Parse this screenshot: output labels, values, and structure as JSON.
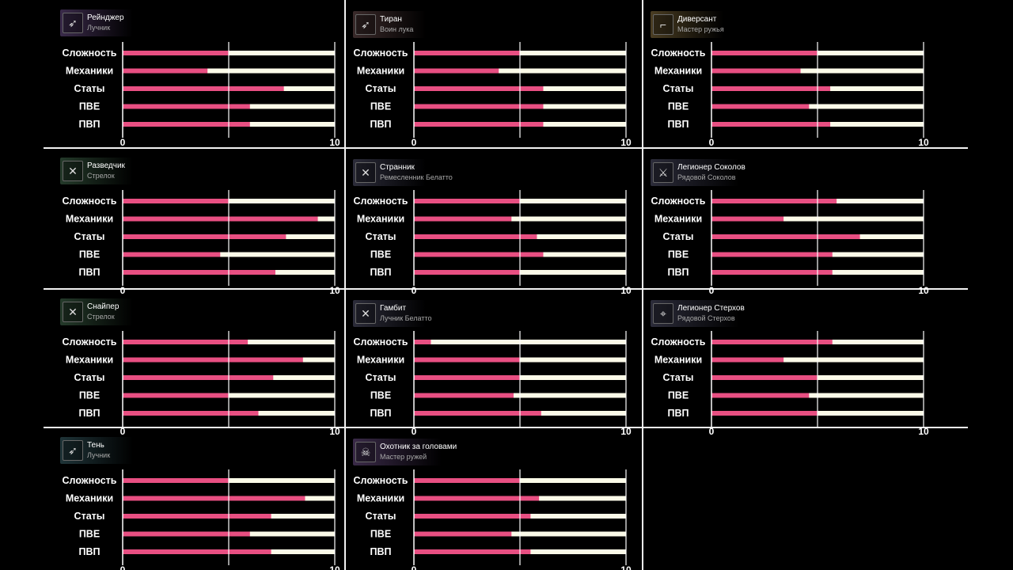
{
  "colors": {
    "background": "#000000",
    "bar_value": "#e84f82",
    "bar_track": "#fbfae8",
    "separator": "#f2f2f2",
    "text": "#ffffff"
  },
  "chart_data": [
    {
      "type": "bar",
      "orientation": "horizontal",
      "title": "Рейнджер",
      "subtitle": "Лучник",
      "icon": "bow-icon",
      "header_color": "#3a2a4a",
      "categories": [
        "Сложность",
        "Механики",
        "Статы",
        "ПВЕ",
        "ПВП"
      ],
      "values": [
        5,
        4,
        7.6,
        6,
        6
      ],
      "xlim": [
        0,
        10
      ],
      "xticks": [
        0,
        10
      ],
      "grid_x": [
        5
      ]
    },
    {
      "type": "bar",
      "orientation": "horizontal",
      "title": "Тиран",
      "subtitle": "Воин лука",
      "icon": "bow-icon",
      "header_color": "#3a2a2a",
      "categories": [
        "Сложность",
        "Механики",
        "Статы",
        "ПВЕ",
        "ПВП"
      ],
      "values": [
        5,
        4,
        6.1,
        6.1,
        6.1
      ],
      "xlim": [
        0,
        10
      ],
      "xticks": [
        0,
        10
      ],
      "grid_x": [
        5
      ]
    },
    {
      "type": "bar",
      "orientation": "horizontal",
      "title": "Диверсант",
      "subtitle": "Мастер ружья",
      "icon": "rifle-icon",
      "header_color": "#4a3d22",
      "categories": [
        "Сложность",
        "Механики",
        "Статы",
        "ПВЕ",
        "ПВП"
      ],
      "values": [
        5,
        4.2,
        5.6,
        4.6,
        5.6
      ],
      "xlim": [
        0,
        10
      ],
      "xticks": [
        0,
        10
      ],
      "grid_x": [
        5
      ]
    },
    {
      "type": "bar",
      "orientation": "horizontal",
      "title": "Разведчик",
      "subtitle": "Стрелок",
      "icon": "crossbow-icon",
      "header_color": "#243a2a",
      "categories": [
        "Сложность",
        "Механики",
        "Статы",
        "ПВЕ",
        "ПВП"
      ],
      "values": [
        5,
        9.2,
        7.7,
        4.6,
        7.2
      ],
      "xlim": [
        0,
        10
      ],
      "xticks": [
        0,
        10
      ],
      "grid_x": [
        5
      ]
    },
    {
      "type": "bar",
      "orientation": "horizontal",
      "title": "Странник",
      "subtitle": "Ремесленник Белатто",
      "icon": "crossbow-icon",
      "header_color": "#2c2c3a",
      "categories": [
        "Сложность",
        "Механики",
        "Статы",
        "ПВЕ",
        "ПВП"
      ],
      "values": [
        5,
        4.6,
        5.8,
        6.1,
        5
      ],
      "xlim": [
        0,
        10
      ],
      "xticks": [
        0,
        10
      ],
      "grid_x": [
        5
      ]
    },
    {
      "type": "bar",
      "orientation": "horizontal",
      "title": "Легионер Соколов",
      "subtitle": "Рядовой Соколов",
      "icon": "sword-icon",
      "header_color": "#2c2c3a",
      "categories": [
        "Сложность",
        "Механики",
        "Статы",
        "ПВЕ",
        "ПВП"
      ],
      "values": [
        5.9,
        3.4,
        7,
        5.7,
        5.7
      ],
      "xlim": [
        0,
        10
      ],
      "xticks": [
        0,
        10
      ],
      "grid_x": [
        5
      ]
    },
    {
      "type": "bar",
      "orientation": "horizontal",
      "title": "Снайпер",
      "subtitle": "Стрелок",
      "icon": "crossbow-icon",
      "header_color": "#243a2a",
      "categories": [
        "Сложность",
        "Механики",
        "Статы",
        "ПВЕ",
        "ПВП"
      ],
      "values": [
        5.9,
        8.5,
        7.1,
        5,
        6.4
      ],
      "xlim": [
        0,
        10
      ],
      "xticks": [
        0,
        10
      ],
      "grid_x": [
        5
      ]
    },
    {
      "type": "bar",
      "orientation": "horizontal",
      "title": "Гамбит",
      "subtitle": "Лучник Белатто",
      "icon": "crossbow-icon",
      "header_color": "#2c2c3a",
      "categories": [
        "Сложность",
        "Механики",
        "Статы",
        "ПВЕ",
        "ПВП"
      ],
      "values": [
        0.8,
        5,
        5,
        4.7,
        6
      ],
      "xlim": [
        0,
        10
      ],
      "xticks": [
        0,
        10
      ],
      "grid_x": [
        5
      ]
    },
    {
      "type": "bar",
      "orientation": "horizontal",
      "title": "Легионер Стерхов",
      "subtitle": "Рядовой Стерхов",
      "icon": "target-icon",
      "header_color": "#2c2c3a",
      "categories": [
        "Сложность",
        "Механики",
        "Статы",
        "ПВЕ",
        "ПВП"
      ],
      "values": [
        5.7,
        3.4,
        5,
        4.6,
        5
      ],
      "xlim": [
        0,
        10
      ],
      "xticks": [
        0,
        10
      ],
      "grid_x": [
        5
      ]
    },
    {
      "type": "bar",
      "orientation": "horizontal",
      "title": "Тень",
      "subtitle": "Лучник",
      "icon": "bow-icon",
      "header_color": "#1f3438",
      "categories": [
        "Сложность",
        "Механики",
        "Статы",
        "ПВЕ",
        "ПВП"
      ],
      "values": [
        5,
        8.6,
        7,
        6,
        7
      ],
      "xlim": [
        0,
        10
      ],
      "xticks": [
        0,
        10
      ],
      "grid_x": [
        5
      ]
    },
    {
      "type": "bar",
      "orientation": "horizontal",
      "title": "Охотник за головами",
      "subtitle": "Мастер ружей",
      "icon": "skull-icon",
      "header_color": "#3a2a48",
      "categories": [
        "Сложность",
        "Механики",
        "Статы",
        "ПВЕ",
        "ПВП"
      ],
      "values": [
        5,
        5.9,
        5.5,
        4.6,
        5.5
      ],
      "xlim": [
        0,
        10
      ],
      "xticks": [
        0,
        10
      ],
      "grid_x": [
        5
      ]
    }
  ]
}
